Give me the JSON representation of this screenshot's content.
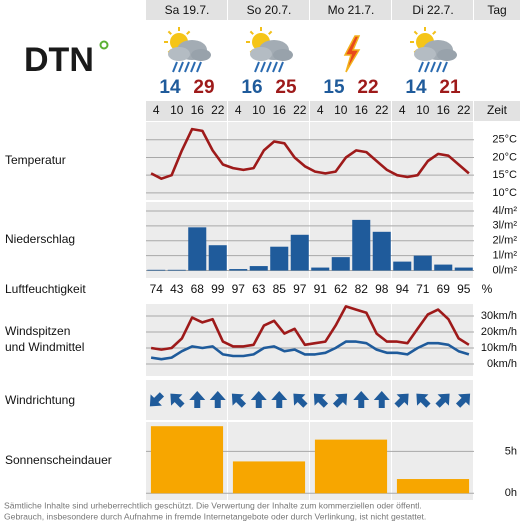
{
  "logo": "DTN",
  "header": {
    "days": [
      "Sa 19.7.",
      "So 20.7.",
      "Mo 21.7.",
      "Di 22.7."
    ],
    "day_label": "Tag",
    "time_label": "Zeit",
    "times": [
      4,
      10,
      16,
      22
    ]
  },
  "min_temps": [
    14,
    16,
    15,
    14
  ],
  "max_temps": [
    29,
    25,
    22,
    21
  ],
  "humidity": {
    "label": "Luftfeuchtigkeit",
    "unit": "%",
    "values": [
      74,
      43,
      68,
      99,
      97,
      63,
      85,
      97,
      91,
      62,
      82,
      98,
      94,
      71,
      69,
      95
    ]
  },
  "wind_direction": {
    "label": "Windrichtung",
    "degrees": [
      225,
      315,
      0,
      0,
      315,
      0,
      0,
      315,
      315,
      45,
      0,
      0,
      45,
      315,
      45,
      45
    ],
    "color": "#1f5b9b"
  },
  "footer": [
    "Sämtliche Inhalte sind urheberrechtlich geschützt. Die Verwertung der Inhalte zum kommerziellen oder öffentl.",
    "Gebrauch, insbesondere durch Aufnahme in fremde Internetangebote oder durch Verlinkung, ist nicht gestattet."
  ],
  "chart_data": [
    {
      "type": "line",
      "label": [
        "Temperatur"
      ],
      "series": [
        {
          "color": "#9e1a1a",
          "values": [
            15.5,
            14,
            15,
            22,
            28,
            27.5,
            22,
            18,
            17,
            16.5,
            17,
            22,
            24.5,
            24,
            20,
            17.5,
            16,
            15.5,
            16,
            20,
            22,
            21.5,
            19,
            16.5,
            15,
            14.5,
            15,
            19,
            21,
            20.5,
            18,
            15.5
          ]
        }
      ],
      "ylim": [
        8,
        30
      ],
      "yticks": [
        {
          "value": 10,
          "label": "10°C"
        },
        {
          "value": 15,
          "label": "15°C"
        },
        {
          "value": 20,
          "label": "20°C"
        },
        {
          "value": 25,
          "label": "25°C"
        }
      ],
      "grid": true
    },
    {
      "type": "bar",
      "label": [
        "Niederschlag"
      ],
      "color": "#1f5b9b",
      "values": [
        0.05,
        0.05,
        2.9,
        1.7,
        0.1,
        0.3,
        1.6,
        2.4,
        0.2,
        0.9,
        3.4,
        2.6,
        0.6,
        1.0,
        0.4,
        0.2
      ],
      "ylim": [
        -0.5,
        4.6
      ],
      "yticks": [
        {
          "value": 0,
          "label": "0l/m²"
        },
        {
          "value": 1,
          "label": "1l/m²"
        },
        {
          "value": 2,
          "label": "2l/m²"
        },
        {
          "value": 3,
          "label": "3l/m²"
        },
        {
          "value": 4,
          "label": "4l/m²"
        }
      ],
      "grid": true
    },
    {
      "type": "line",
      "label": [
        "Windspitzen",
        "und Windmittel"
      ],
      "series": [
        {
          "color": "#9e1a1a",
          "values": [
            10,
            9,
            10,
            16,
            29,
            26,
            28,
            14,
            11,
            11,
            12,
            24,
            27,
            19,
            22,
            12,
            13,
            14,
            24,
            36,
            34,
            32,
            19,
            14,
            14,
            13,
            22,
            31,
            34,
            28,
            16,
            12
          ]
        },
        {
          "color": "#1f5b9b",
          "values": [
            4,
            3,
            4,
            8,
            11,
            10,
            11,
            6,
            5,
            5,
            6,
            10,
            11,
            8,
            9,
            6,
            6,
            7,
            10,
            14,
            14,
            13,
            9,
            7,
            7,
            6,
            10,
            13,
            13,
            12,
            8,
            6
          ]
        }
      ],
      "ylim": [
        -7.5,
        37.5
      ],
      "yticks": [
        {
          "value": 0,
          "label": "0km/h"
        },
        {
          "value": 10,
          "label": "10km/h"
        },
        {
          "value": 20,
          "label": "20km/h"
        },
        {
          "value": 30,
          "label": "30km/h"
        }
      ],
      "grid": true
    },
    {
      "type": "bar",
      "label": [
        "Sonnenscheindauer"
      ],
      "color": "#f7a600",
      "values": [
        8,
        3.8,
        6.4,
        1.7
      ],
      "ylim": [
        -0.8,
        8.5
      ],
      "yticks": [
        {
          "value": 0,
          "label": "0h"
        },
        {
          "value": 5,
          "label": "5h"
        }
      ],
      "grid": true
    }
  ]
}
